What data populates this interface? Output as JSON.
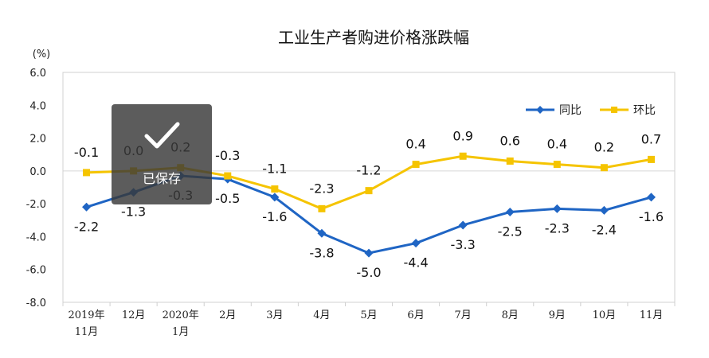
{
  "chart_data": {
    "type": "line",
    "title": "工业生产者购进价格涨跌幅",
    "unit_label": "(%)",
    "categories": [
      [
        "2019年",
        "11月"
      ],
      [
        "12月"
      ],
      [
        "2020年",
        "1月"
      ],
      [
        "2月"
      ],
      [
        "3月"
      ],
      [
        "4月"
      ],
      [
        "5月"
      ],
      [
        "6月"
      ],
      [
        "7月"
      ],
      [
        "8月"
      ],
      [
        "9月"
      ],
      [
        "10月"
      ],
      [
        "11月"
      ]
    ],
    "ylim": [
      -8,
      6
    ],
    "yticks": [
      "6.0",
      "4.0",
      "2.0",
      "0.0",
      "-2.0",
      "-4.0",
      "-6.0",
      "-8.0"
    ],
    "legend_position": "top-right",
    "series": [
      {
        "name": "同比",
        "color": "#1f65c4",
        "marker": "diamond",
        "values": [
          -2.2,
          -1.3,
          -0.3,
          -0.5,
          -1.6,
          -3.8,
          -5.0,
          -4.4,
          -3.3,
          -2.5,
          -2.3,
          -2.4,
          -1.6
        ],
        "labels": [
          "-2.2",
          "-1.3",
          "-0.3",
          "-0.5",
          "-1.6",
          "-3.8",
          "-5.0",
          "-4.4",
          "-3.3",
          "-2.5",
          "-2.3",
          "-2.4",
          "-1.6"
        ]
      },
      {
        "name": "环比",
        "color": "#f5c400",
        "marker": "square",
        "values": [
          -0.1,
          0.0,
          0.2,
          -0.3,
          -1.1,
          -2.3,
          -1.2,
          0.4,
          0.9,
          0.6,
          0.4,
          0.2,
          0.7
        ],
        "labels": [
          "-0.1",
          "0.0",
          "0.2",
          "-0.3",
          "-1.1",
          "-2.3",
          "-1.2",
          "0.4",
          "0.9",
          "0.6",
          "0.4",
          "0.2",
          "0.7"
        ]
      }
    ],
    "grid": false
  },
  "overlay": {
    "toast_text": "已保存",
    "toast_icon": "checkmark-icon"
  }
}
